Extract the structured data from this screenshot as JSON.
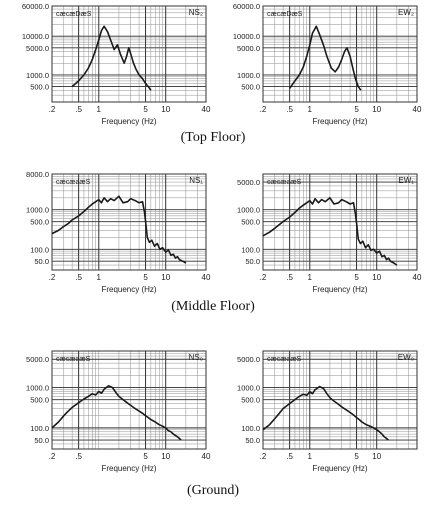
{
  "colors": {
    "curve": "#1a1a1a",
    "grid": "#8f8f8f",
    "frame": "#333333",
    "text": "#222222"
  },
  "captions": {
    "top": "(Top Floor)",
    "middle": "(Middle Floor)",
    "ground": "(Ground)"
  },
  "chart_data": [
    {
      "type": "line",
      "floor": "Top Floor",
      "component": "NS",
      "component_label": "NS₂",
      "legend": "cæcæDæS",
      "xlabel": "Frequency (Hz)",
      "ylabel": "",
      "xscale": "log",
      "yscale": "log",
      "xlim": [
        0.2,
        40
      ],
      "ylim": [
        200,
        60000
      ],
      "xticks": [
        0.2,
        0.5,
        1,
        5,
        10,
        40
      ],
      "xtick_labels": [
        ".2",
        ".5",
        "1",
        "5",
        "10",
        "40"
      ],
      "yticks": [
        500,
        1000,
        5000,
        10000,
        60000
      ],
      "ytick_labels": [
        "500.0",
        "1000.0",
        "5000.0",
        "10000.0",
        "60000.0"
      ],
      "grid": true,
      "series": [
        {
          "x": [
            0.4,
            0.5,
            0.6,
            0.7,
            0.8,
            0.9,
            1.0,
            1.1,
            1.2,
            1.35,
            1.5,
            1.7,
            1.9,
            2.1,
            2.4,
            2.6,
            2.8,
            3.0,
            3.3,
            3.6,
            4.0,
            4.5,
            5.0,
            5.5,
            6.0
          ],
          "y": [
            500,
            700,
            1000,
            1500,
            2500,
            4500,
            8000,
            14000,
            18000,
            13000,
            8000,
            4500,
            6000,
            3500,
            2000,
            3000,
            5000,
            3500,
            2000,
            1400,
            1000,
            800,
            600,
            500,
            400
          ]
        }
      ]
    },
    {
      "type": "line",
      "floor": "Top Floor",
      "component": "EW",
      "component_label": "EW₂",
      "legend": "cæcæDæS",
      "xlabel": "Frequency (Hz)",
      "ylabel": "",
      "xscale": "log",
      "yscale": "log",
      "xlim": [
        0.2,
        40
      ],
      "ylim": [
        200,
        60000
      ],
      "xticks": [
        0.2,
        0.5,
        1,
        5,
        10,
        40
      ],
      "xtick_labels": [
        ".2",
        ".5",
        "1",
        "5",
        "10",
        "40"
      ],
      "yticks": [
        500,
        1000,
        5000,
        10000,
        60000
      ],
      "ytick_labels": [
        "500.0",
        "1000.0",
        "5000.0",
        "10000.0",
        "60000.0"
      ],
      "grid": true,
      "series": [
        {
          "x": [
            0.5,
            0.6,
            0.7,
            0.8,
            0.9,
            1.0,
            1.1,
            1.25,
            1.4,
            1.6,
            1.8,
            2.1,
            2.4,
            2.7,
            3.0,
            3.3,
            3.6,
            4.0,
            4.4,
            4.8,
            5.3,
            5.8
          ],
          "y": [
            450,
            700,
            1000,
            1600,
            3000,
            6000,
            12000,
            18000,
            11000,
            6000,
            3000,
            1500,
            1200,
            1600,
            2500,
            4000,
            5000,
            3000,
            1500,
            800,
            500,
            400
          ]
        }
      ]
    },
    {
      "type": "line",
      "floor": "Middle Floor",
      "component": "NS",
      "component_label": "NS₁",
      "legend": "cæcæaæS",
      "xlabel": "Frequency (Hz)",
      "ylabel": "",
      "xscale": "log",
      "yscale": "log",
      "xlim": [
        0.2,
        40
      ],
      "ylim": [
        30,
        8000
      ],
      "xticks": [
        0.2,
        0.5,
        1,
        5,
        10,
        40
      ],
      "xtick_labels": [
        ".2",
        ".5",
        "1",
        "5",
        "10",
        "40"
      ],
      "yticks": [
        50,
        100,
        500,
        1000,
        8000
      ],
      "ytick_labels": [
        "50.0",
        "100.0",
        "500.0",
        "1000.0",
        "8000.0"
      ],
      "grid": true,
      "series": [
        {
          "x": [
            0.2,
            0.25,
            0.3,
            0.35,
            0.4,
            0.5,
            0.6,
            0.7,
            0.8,
            0.9,
            1.0,
            1.1,
            1.2,
            1.35,
            1.5,
            1.7,
            2.0,
            2.3,
            2.7,
            3.0,
            3.5,
            4.0,
            4.5,
            4.8,
            5.0,
            5.3,
            5.7,
            6.2,
            6.8,
            7.5,
            8.2,
            9.0,
            10,
            11,
            12,
            13,
            14,
            15,
            16,
            18,
            20
          ],
          "y": [
            250,
            300,
            380,
            450,
            550,
            700,
            900,
            1150,
            1400,
            1600,
            1800,
            1500,
            2000,
            1600,
            1900,
            1700,
            2200,
            1500,
            1600,
            1900,
            1700,
            1500,
            1600,
            900,
            500,
            200,
            150,
            170,
            120,
            140,
            100,
            110,
            85,
            95,
            70,
            75,
            60,
            65,
            55,
            50,
            45
          ]
        }
      ]
    },
    {
      "type": "line",
      "floor": "Middle Floor",
      "component": "EW",
      "component_label": "EW₁",
      "legend": "cæcæaæS",
      "xlabel": "Frequency (Hz)",
      "ylabel": "",
      "xscale": "log",
      "yscale": "log",
      "xlim": [
        0.2,
        40
      ],
      "ylim": [
        30,
        8000
      ],
      "xticks": [
        0.2,
        0.5,
        1,
        5,
        10,
        40
      ],
      "xtick_labels": [
        ".2",
        ".5",
        "1",
        "5",
        "10",
        "40"
      ],
      "yticks": [
        50,
        100,
        500,
        1000,
        5000
      ],
      "ytick_labels": [
        "50.0",
        "100.0",
        "500.0",
        "1000.0",
        "5000.0"
      ],
      "grid": true,
      "series": [
        {
          "x": [
            0.2,
            0.25,
            0.3,
            0.35,
            0.4,
            0.5,
            0.6,
            0.7,
            0.8,
            0.9,
            1.0,
            1.1,
            1.2,
            1.35,
            1.5,
            1.7,
            2.0,
            2.3,
            2.7,
            3.0,
            3.5,
            4.0,
            4.5,
            4.8,
            5.0,
            5.3,
            5.7,
            6.2,
            6.8,
            7.5,
            8.2,
            9.0,
            10,
            11,
            12,
            13,
            14,
            15,
            16,
            18,
            20
          ],
          "y": [
            220,
            270,
            340,
            420,
            500,
            650,
            850,
            1100,
            1300,
            1500,
            1700,
            1400,
            1900,
            1500,
            1800,
            1600,
            2000,
            1400,
            1500,
            1800,
            1600,
            1400,
            1500,
            800,
            450,
            180,
            140,
            160,
            110,
            130,
            95,
            100,
            80,
            90,
            65,
            70,
            55,
            60,
            50,
            45,
            40
          ]
        }
      ]
    },
    {
      "type": "line",
      "floor": "Ground",
      "component": "NS",
      "component_label": "NS₀",
      "legend": "cæcæaæS",
      "xlabel": "Frequency (Hz)",
      "ylabel": "",
      "xscale": "log",
      "yscale": "log",
      "xlim": [
        0.2,
        40
      ],
      "ylim": [
        30,
        8000
      ],
      "xticks": [
        0.2,
        0.5,
        5,
        10,
        40
      ],
      "xtick_labels": [
        ".2",
        ".5",
        "5",
        "10",
        "40"
      ],
      "yticks": [
        50,
        100,
        500,
        1000,
        5000
      ],
      "ytick_labels": [
        "50.0",
        "100.0",
        "500.0",
        "1000.0",
        "5000.0"
      ],
      "grid": true,
      "series": [
        {
          "x": [
            0.2,
            0.25,
            0.3,
            0.35,
            0.4,
            0.5,
            0.6,
            0.7,
            0.8,
            0.9,
            1.0,
            1.1,
            1.2,
            1.4,
            1.6,
            1.8,
            2.0,
            2.3,
            2.6,
            3.0,
            3.5,
            4.0,
            4.5,
            5.0,
            5.5,
            6.0,
            7.0,
            8.0,
            9.0,
            10,
            11,
            12,
            13,
            15,
            17
          ],
          "y": [
            100,
            140,
            200,
            260,
            320,
            420,
            520,
            600,
            700,
            650,
            800,
            720,
            900,
            1100,
            1000,
            750,
            600,
            500,
            430,
            360,
            300,
            260,
            230,
            200,
            180,
            160,
            140,
            120,
            110,
            100,
            85,
            80,
            70,
            60,
            50
          ]
        }
      ]
    },
    {
      "type": "line",
      "floor": "Ground",
      "component": "EW",
      "component_label": "EW₀",
      "legend": "cæcæaæS",
      "xlabel": "Frequency (Hz)",
      "ylabel": "",
      "xscale": "log",
      "yscale": "log",
      "xlim": [
        0.2,
        40
      ],
      "ylim": [
        30,
        8000
      ],
      "xticks": [
        0.2,
        0.5,
        1,
        5,
        10
      ],
      "xtick_labels": [
        ".2",
        ".5",
        "1",
        "5",
        "10"
      ],
      "yticks": [
        50,
        100,
        500,
        1000,
        5000
      ],
      "ytick_labels": [
        "50.0",
        "100.0",
        "500.0",
        "1000.0",
        "5000.0"
      ],
      "grid": true,
      "series": [
        {
          "x": [
            0.2,
            0.25,
            0.3,
            0.35,
            0.4,
            0.5,
            0.6,
            0.7,
            0.8,
            0.9,
            1.0,
            1.1,
            1.2,
            1.4,
            1.6,
            1.8,
            2.0,
            2.3,
            2.6,
            3.0,
            3.5,
            4.0,
            4.5,
            5.0,
            5.5,
            6.0,
            7.0,
            8.0,
            9.0,
            10,
            11,
            12,
            13,
            15
          ],
          "y": [
            90,
            120,
            170,
            230,
            300,
            400,
            500,
            600,
            680,
            640,
            780,
            700,
            880,
            1050,
            950,
            700,
            560,
            460,
            400,
            330,
            280,
            240,
            210,
            180,
            160,
            140,
            120,
            110,
            100,
            90,
            80,
            70,
            60,
            50
          ]
        }
      ]
    }
  ]
}
